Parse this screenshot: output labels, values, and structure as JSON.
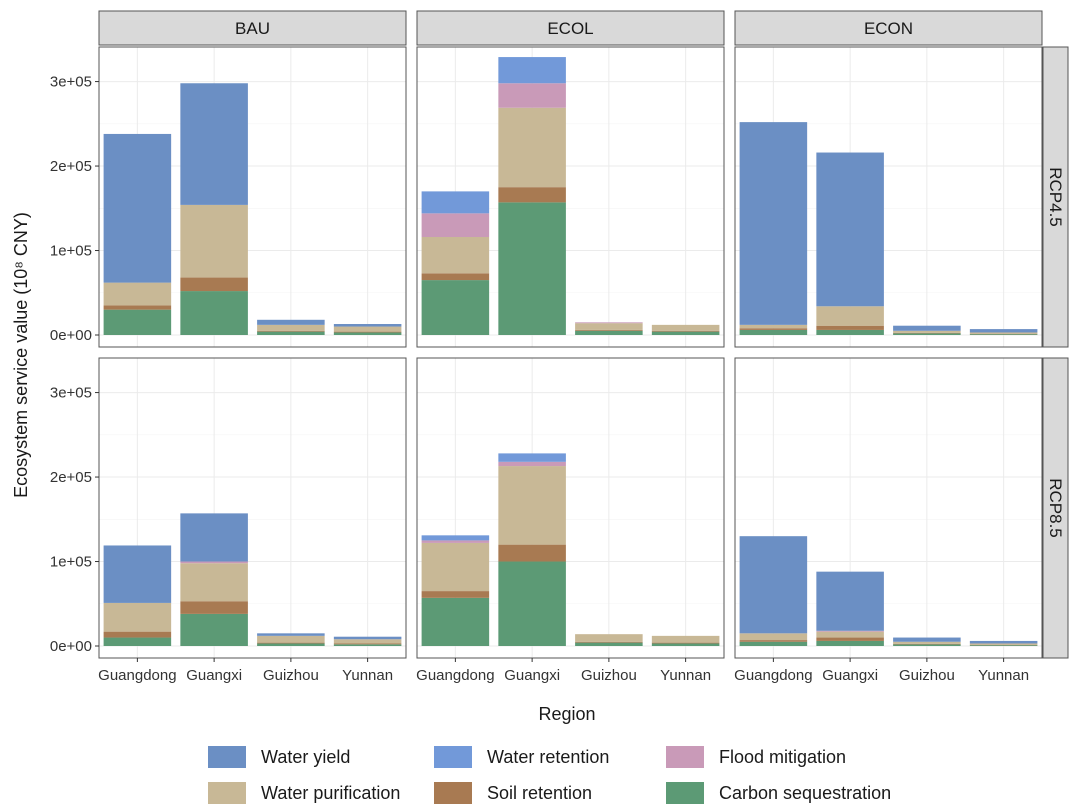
{
  "chart_data": {
    "type": "bar",
    "stacked": true,
    "facet_columns": [
      "BAU",
      "ECOL",
      "ECON"
    ],
    "facet_rows": [
      "RCP4.5",
      "RCP8.5"
    ],
    "categories": [
      "Guangdong",
      "Guangxi",
      "Guizhou",
      "Yunnan"
    ],
    "xlabel": "Region",
    "ylabel": "Ecosystem service value (10⁸ CNY)",
    "ylim": [
      0,
      335000
    ],
    "y_ticks": [
      0,
      100000,
      200000,
      300000
    ],
    "y_tick_labels": [
      "0e+00",
      "1e+05",
      "2e+05",
      "3e+05"
    ],
    "grid": true,
    "legend_position": "bottom",
    "series": [
      {
        "name": "Water yield",
        "color": "#6b8fc4"
      },
      {
        "name": "Water retention",
        "color": "#7299d9"
      },
      {
        "name": "Flood mitigation",
        "color": "#c99ab8"
      },
      {
        "name": "Water purification",
        "color": "#c8b896"
      },
      {
        "name": "Soil retention",
        "color": "#a87a52"
      },
      {
        "name": "Carbon sequestration",
        "color": "#5c9a75"
      }
    ],
    "stack_order_bottom_to_top": [
      "Carbon sequestration",
      "Soil retention",
      "Water purification",
      "Flood mitigation",
      "Water retention",
      "Water yield"
    ],
    "panels": [
      {
        "column": "BAU",
        "row": "RCP4.5",
        "values": {
          "Guangdong": {
            "Carbon sequestration": 30000,
            "Soil retention": 5000,
            "Water purification": 27000,
            "Flood mitigation": 0,
            "Water retention": 0,
            "Water yield": 176000
          },
          "Guangxi": {
            "Carbon sequestration": 52000,
            "Soil retention": 16000,
            "Water purification": 86000,
            "Flood mitigation": 0,
            "Water retention": 0,
            "Water yield": 144000
          },
          "Guizhou": {
            "Carbon sequestration": 4000,
            "Soil retention": 1000,
            "Water purification": 7000,
            "Flood mitigation": 0,
            "Water retention": 0,
            "Water yield": 6000
          },
          "Yunnan": {
            "Carbon sequestration": 3000,
            "Soil retention": 1000,
            "Water purification": 6000,
            "Flood mitigation": 0,
            "Water retention": 0,
            "Water yield": 3000
          }
        }
      },
      {
        "column": "ECOL",
        "row": "RCP4.5",
        "values": {
          "Guangdong": {
            "Carbon sequestration": 65000,
            "Soil retention": 8000,
            "Water purification": 43000,
            "Flood mitigation": 28000,
            "Water retention": 26000,
            "Water yield": 0
          },
          "Guangxi": {
            "Carbon sequestration": 157000,
            "Soil retention": 18000,
            "Water purification": 94000,
            "Flood mitigation": 29000,
            "Water retention": 31000,
            "Water yield": 0
          },
          "Guizhou": {
            "Carbon sequestration": 5000,
            "Soil retention": 1000,
            "Water purification": 8000,
            "Flood mitigation": 1000,
            "Water retention": 0,
            "Water yield": 0
          },
          "Yunnan": {
            "Carbon sequestration": 4000,
            "Soil retention": 1000,
            "Water purification": 7000,
            "Flood mitigation": 0,
            "Water retention": 0,
            "Water yield": 0
          }
        }
      },
      {
        "column": "ECON",
        "row": "RCP4.5",
        "values": {
          "Guangdong": {
            "Carbon sequestration": 6000,
            "Soil retention": 2000,
            "Water purification": 4000,
            "Flood mitigation": 0,
            "Water retention": 0,
            "Water yield": 240000
          },
          "Guangxi": {
            "Carbon sequestration": 6000,
            "Soil retention": 5000,
            "Water purification": 23000,
            "Flood mitigation": 0,
            "Water retention": 0,
            "Water yield": 182000
          },
          "Guizhou": {
            "Carbon sequestration": 2000,
            "Soil retention": 500,
            "Water purification": 2500,
            "Flood mitigation": 0,
            "Water retention": 0,
            "Water yield": 6000
          },
          "Yunnan": {
            "Carbon sequestration": 1000,
            "Soil retention": 500,
            "Water purification": 1500,
            "Flood mitigation": 0,
            "Water retention": 0,
            "Water yield": 4000
          }
        }
      },
      {
        "column": "BAU",
        "row": "RCP8.5",
        "values": {
          "Guangdong": {
            "Carbon sequestration": 10000,
            "Soil retention": 7000,
            "Water purification": 34000,
            "Flood mitigation": 0,
            "Water retention": 0,
            "Water yield": 68000
          },
          "Guangxi": {
            "Carbon sequestration": 38000,
            "Soil retention": 15000,
            "Water purification": 45000,
            "Flood mitigation": 2000,
            "Water retention": 0,
            "Water yield": 57000
          },
          "Guizhou": {
            "Carbon sequestration": 3000,
            "Soil retention": 1000,
            "Water purification": 8000,
            "Flood mitigation": 0,
            "Water retention": 0,
            "Water yield": 3000
          },
          "Yunnan": {
            "Carbon sequestration": 2000,
            "Soil retention": 1000,
            "Water purification": 5000,
            "Flood mitigation": 0,
            "Water retention": 0,
            "Water yield": 3000
          }
        }
      },
      {
        "column": "ECOL",
        "row": "RCP8.5",
        "values": {
          "Guangdong": {
            "Carbon sequestration": 57000,
            "Soil retention": 8000,
            "Water purification": 57000,
            "Flood mitigation": 3000,
            "Water retention": 6000,
            "Water yield": 0
          },
          "Guangxi": {
            "Carbon sequestration": 100000,
            "Soil retention": 20000,
            "Water purification": 93000,
            "Flood mitigation": 5000,
            "Water retention": 10000,
            "Water yield": 0
          },
          "Guizhou": {
            "Carbon sequestration": 4000,
            "Soil retention": 1000,
            "Water purification": 9000,
            "Flood mitigation": 0,
            "Water retention": 0,
            "Water yield": 0
          },
          "Yunnan": {
            "Carbon sequestration": 3000,
            "Soil retention": 1000,
            "Water purification": 8000,
            "Flood mitigation": 0,
            "Water retention": 0,
            "Water yield": 0
          }
        }
      },
      {
        "column": "ECON",
        "row": "RCP8.5",
        "values": {
          "Guangdong": {
            "Carbon sequestration": 5000,
            "Soil retention": 2000,
            "Water purification": 8000,
            "Flood mitigation": 0,
            "Water retention": 0,
            "Water yield": 115000
          },
          "Guangxi": {
            "Carbon sequestration": 6000,
            "Soil retention": 4000,
            "Water purification": 7000,
            "Flood mitigation": 1000,
            "Water retention": 0,
            "Water yield": 70000
          },
          "Guizhou": {
            "Carbon sequestration": 2000,
            "Soil retention": 500,
            "Water purification": 2500,
            "Flood mitigation": 0,
            "Water retention": 0,
            "Water yield": 5000
          },
          "Yunnan": {
            "Carbon sequestration": 1000,
            "Soil retention": 500,
            "Water purification": 1500,
            "Flood mitigation": 0,
            "Water retention": 0,
            "Water yield": 3000
          }
        }
      }
    ]
  }
}
